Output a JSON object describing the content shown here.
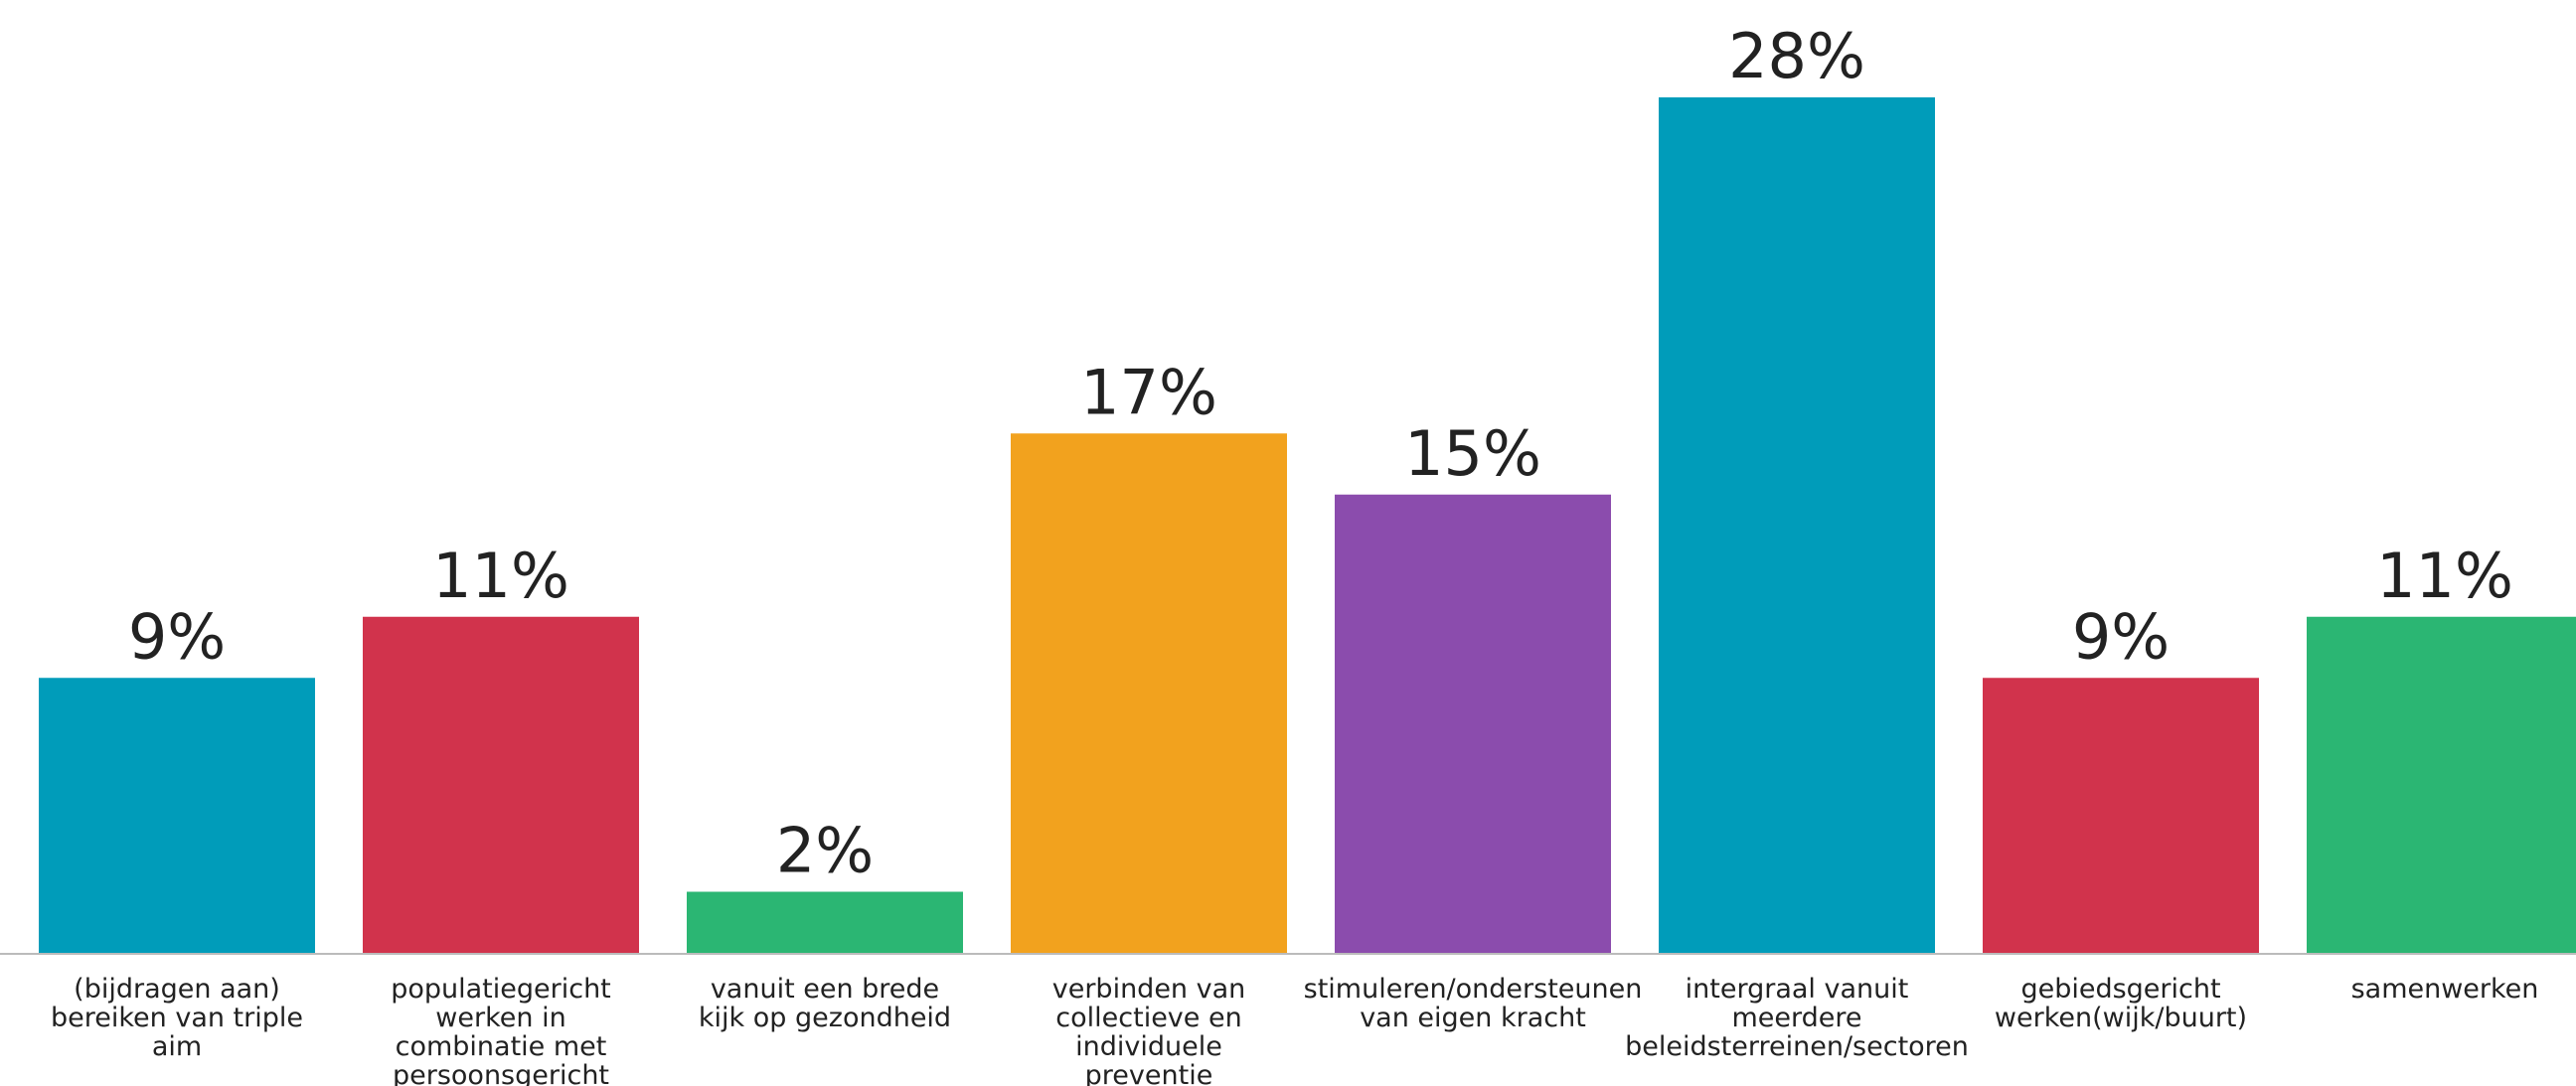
{
  "chart_data": {
    "type": "bar",
    "title": "",
    "xlabel": "",
    "ylabel": "",
    "ylim": [
      0,
      28
    ],
    "grid": false,
    "legend": "none",
    "categories": [
      "(bijdragen aan) bereiken van triple aim",
      "populatiegericht werken in combinatie met persoonsgericht",
      "vanuit een brede kijk op gezondheid",
      "verbinden van collectieve en individuele preventie",
      "stimuleren/ondersteunen van eigen kracht",
      "intergraal vanuit meerdere beleidsterreinen/sectoren",
      "gebiedsgericht werken(wijk/buurt)",
      "samenwerken"
    ],
    "category_lines": [
      [
        "(bijdragen aan)",
        "bereiken van triple",
        "aim"
      ],
      [
        "populatiegericht",
        "werken in",
        "combinatie met",
        "persoonsgericht"
      ],
      [
        "vanuit een brede",
        "kijk op gezondheid"
      ],
      [
        "verbinden van",
        "collectieve en",
        "individuele",
        "preventie"
      ],
      [
        "stimuleren/ondersteunen",
        "van eigen kracht"
      ],
      [
        "intergraal vanuit",
        "meerdere",
        "beleidsterreinen/sectoren"
      ],
      [
        "gebiedsgericht",
        "werken(wijk/buurt)"
      ],
      [
        "samenwerken"
      ]
    ],
    "values": [
      9,
      11,
      2,
      17,
      15,
      28,
      9,
      11
    ],
    "value_labels": [
      "9%",
      "11%",
      "2%",
      "17%",
      "15%",
      "28%",
      "9%",
      "11%"
    ],
    "unit": "%",
    "colors": [
      "#009cba",
      "#d1334c",
      "#2bb673",
      "#f2a21e",
      "#8b4cad",
      "#009cba",
      "#d1334c",
      "#2bb673"
    ],
    "axis_color": "#bbbbbb"
  }
}
